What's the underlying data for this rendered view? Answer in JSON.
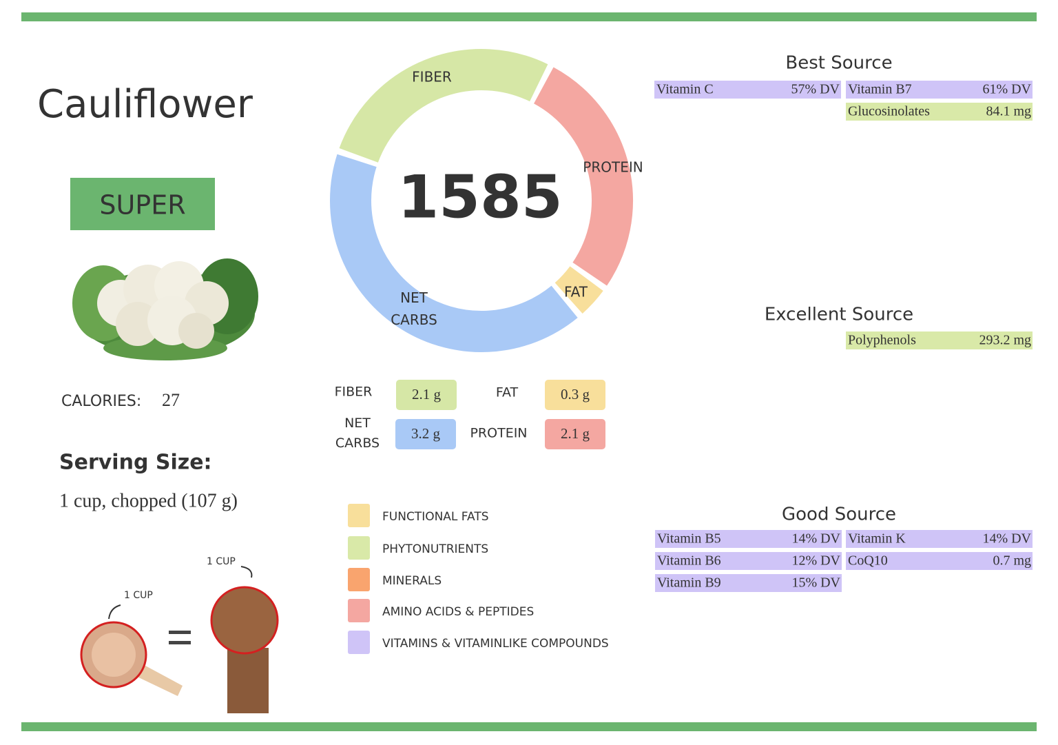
{
  "food": "Cauliflower",
  "badge": "SUPER",
  "calories_label": "CALORIES:",
  "calories": "27",
  "serving_title": "Serving Size:",
  "serving": "1 cup, chopped (107 g)",
  "cup_label": "1 CUP",
  "fist_label": "1 CUP",
  "score": "1585",
  "macros": [
    {
      "name": "FIBER",
      "value": 2.1,
      "value_label": "2.1 g",
      "color": "#d6e7a6"
    },
    {
      "name": "PROTEIN",
      "value": 2.1,
      "value_label": "2.1 g",
      "color": "#f4a7a1"
    },
    {
      "name": "FAT",
      "value": 0.3,
      "value_label": "0.3 g",
      "color": "#f8df9b"
    },
    {
      "name": "NET CARBS",
      "value": 3.2,
      "value_label": "3.2 g",
      "color": "#a9c9f6"
    }
  ],
  "legend": [
    {
      "label": "FUNCTIONAL  FATS",
      "color": "#f8df9b"
    },
    {
      "label": "PHYTONUTRIENTS",
      "color": "#d9e9a8"
    },
    {
      "label": "MINERALS",
      "color": "#f9a46e"
    },
    {
      "label": "AMINO ACIDS & PEPTIDES",
      "color": "#f4a7a1"
    },
    {
      "label": "VITAMINS & VITAMINLIKE COMPOUNDS",
      "color": "#cfc4f7"
    }
  ],
  "sources": [
    {
      "title": "Best Source",
      "items": [
        {
          "name": "Vitamin C",
          "amount": "57% DV",
          "color": "#cfc4f7"
        },
        {
          "name": "Vitamin B7",
          "amount": "61% DV",
          "color": "#cfc4f7"
        },
        {
          "name": "Glucosinolates",
          "amount": "84.1 mg",
          "color": "#d9e9a8"
        }
      ]
    },
    {
      "title": "Excellent Source",
      "items": [
        {
          "name": "Polyphenols",
          "amount": "293.2 mg",
          "color": "#d9e9a8"
        }
      ]
    },
    {
      "title": "Good Source",
      "items": [
        {
          "name": "Vitamin B5",
          "amount": "14% DV",
          "color": "#cfc4f7"
        },
        {
          "name": "Vitamin K",
          "amount": "14% DV",
          "color": "#cfc4f7"
        },
        {
          "name": "Vitamin B6",
          "amount": "12% DV",
          "color": "#cfc4f7"
        },
        {
          "name": "CoQ10",
          "amount": "0.7 mg",
          "color": "#cfc4f7"
        },
        {
          "name": "Vitamin B9",
          "amount": "15% DV",
          "color": "#cfc4f7"
        }
      ]
    }
  ]
}
